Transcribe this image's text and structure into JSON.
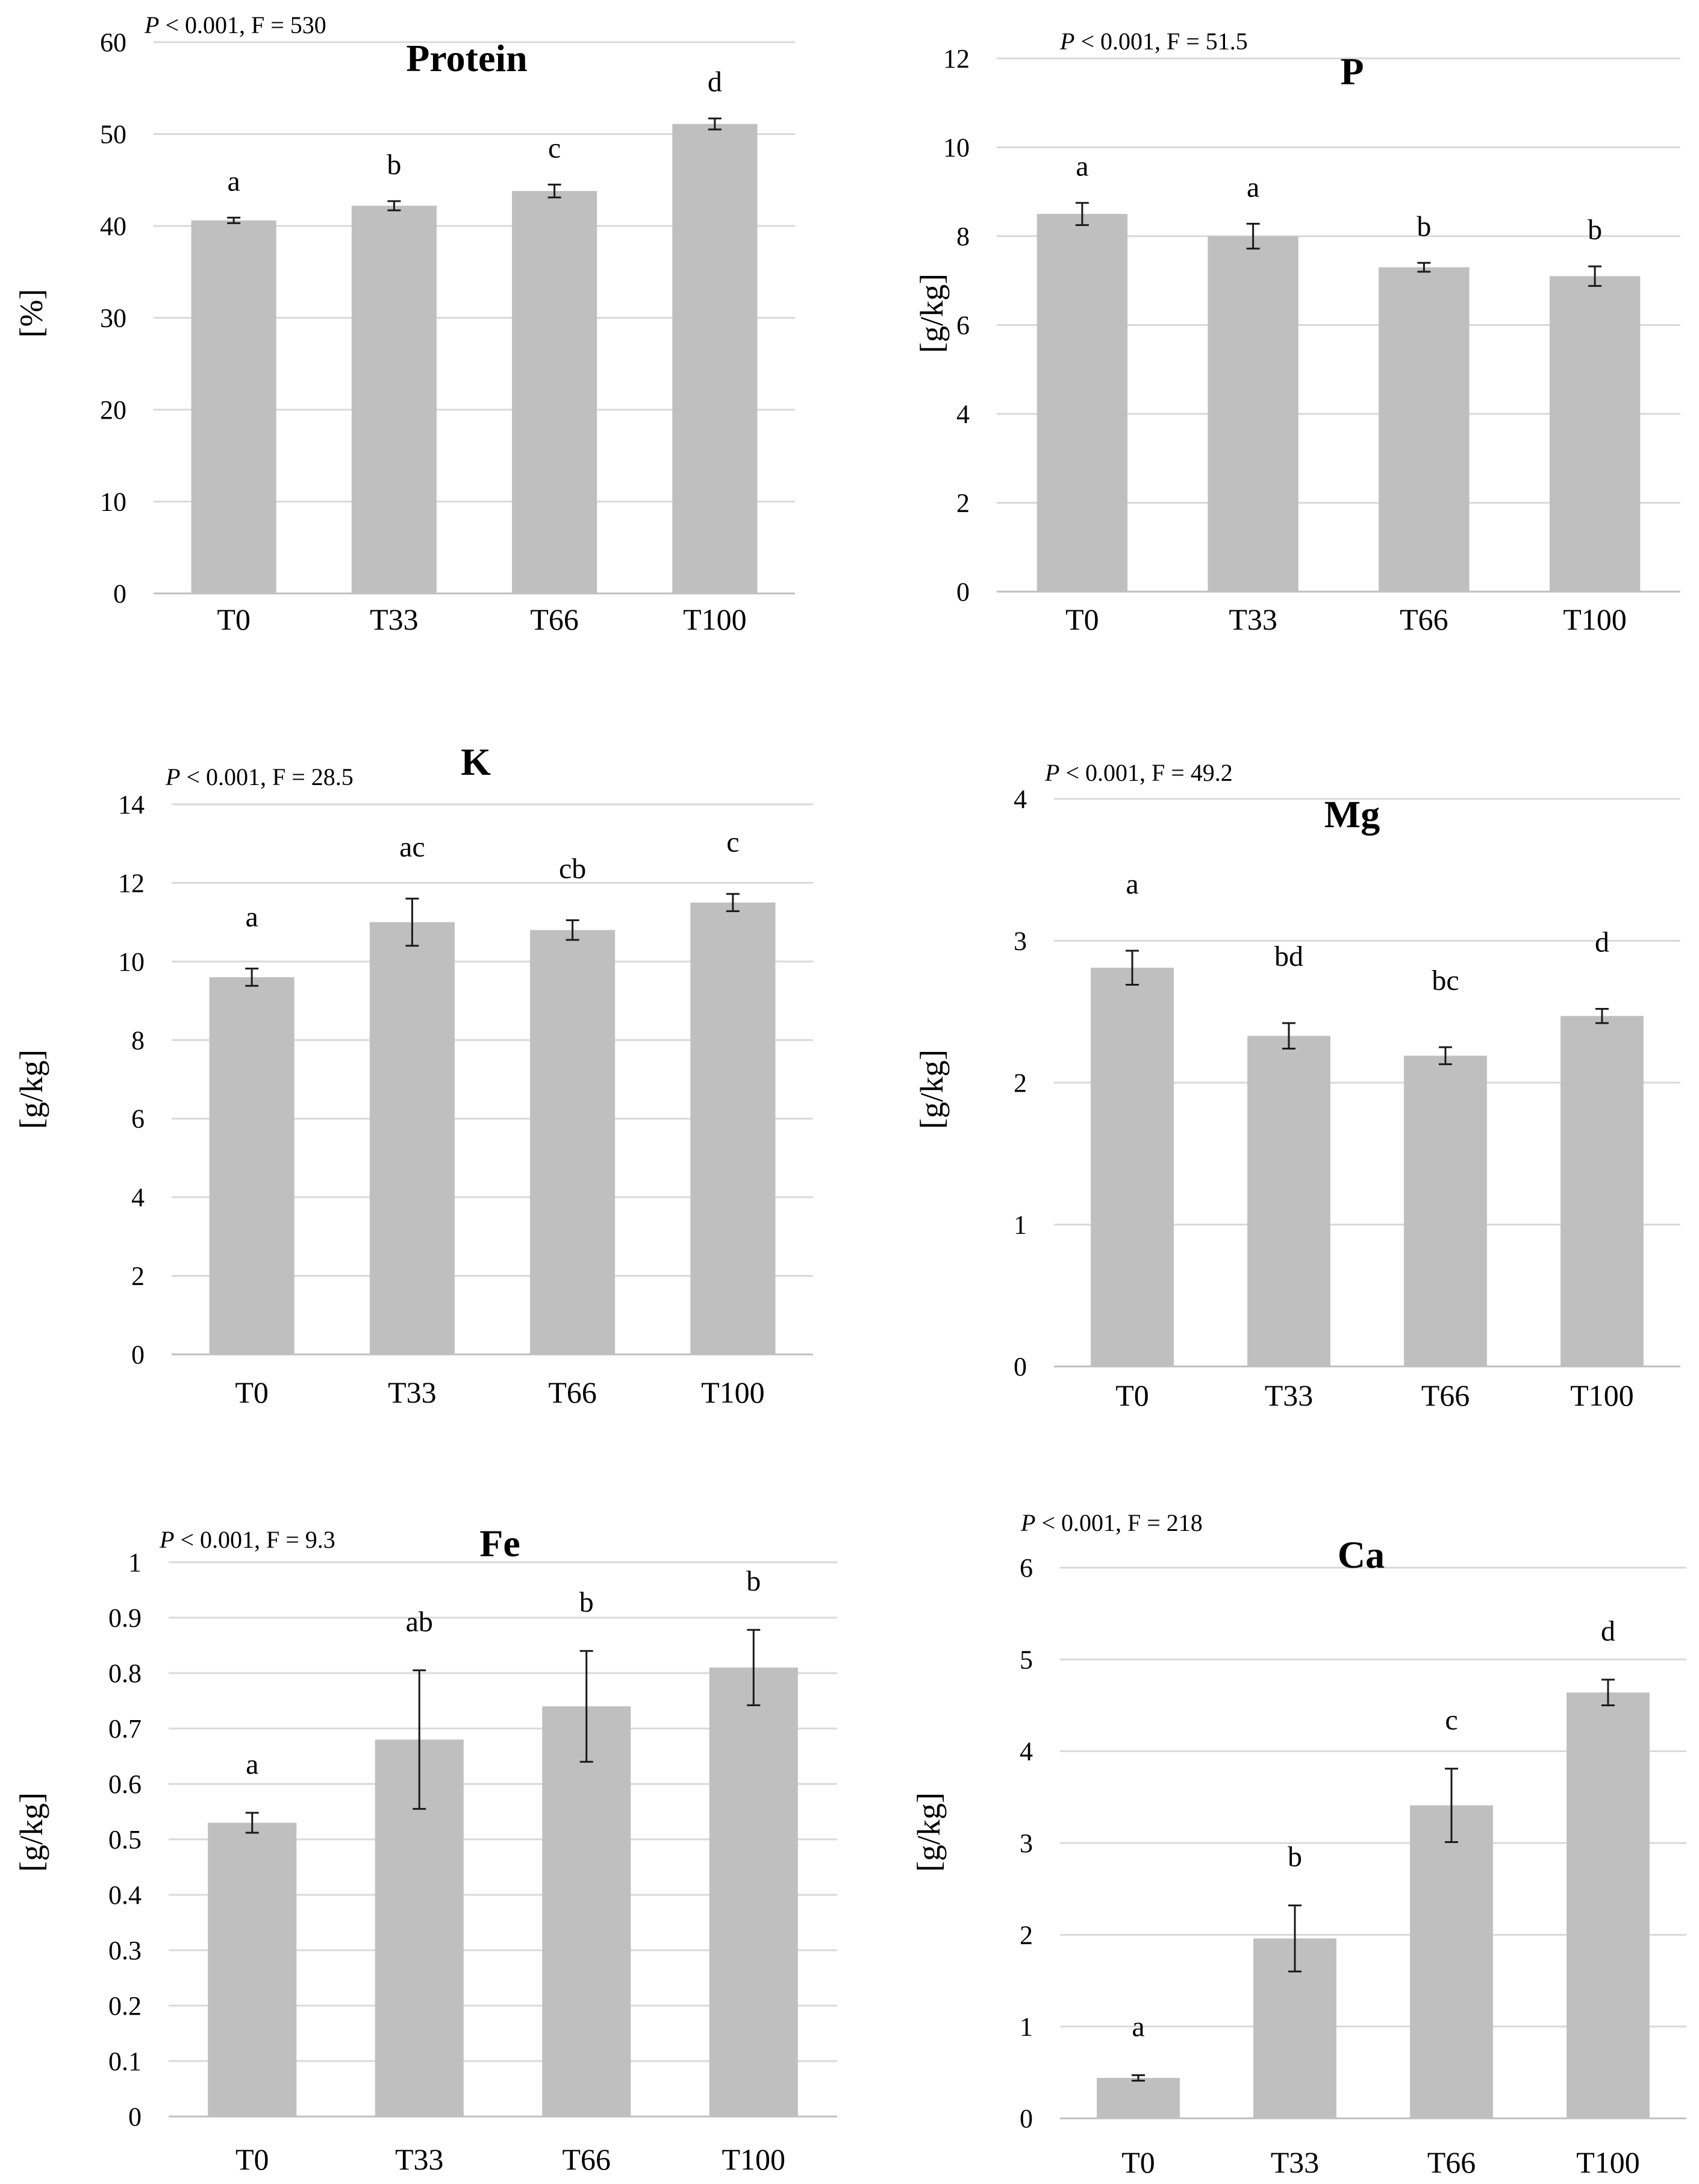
{
  "chart_data": [
    {
      "type": "bar",
      "title": "Protein",
      "stat_p": "P",
      "stat_rest": " < 0.001, F = 530",
      "ylabel": "[%]",
      "xlabel": "",
      "ylim": [
        0,
        60
      ],
      "yticks": [
        0,
        10,
        20,
        30,
        40,
        50,
        60
      ],
      "ytick_labels": [
        "0",
        "10",
        "20",
        "30",
        "40",
        "50",
        "60"
      ],
      "categories": [
        "T0",
        "T33",
        "T66",
        "T100"
      ],
      "values": [
        40.6,
        42.2,
        43.8,
        51.1
      ],
      "errors": [
        0.3,
        0.5,
        0.7,
        0.6
      ],
      "letters": [
        "a",
        "b",
        "c",
        "d"
      ],
      "grid": true
    },
    {
      "type": "bar",
      "title": "P",
      "stat_p": "P",
      "stat_rest": " < 0.001, F = 51.5",
      "ylabel": "[g/kg]",
      "xlabel": "",
      "ylim": [
        0,
        12
      ],
      "yticks": [
        0,
        2,
        4,
        6,
        8,
        10,
        12
      ],
      "ytick_labels": [
        "0",
        "2",
        "4",
        "6",
        "8",
        "10",
        "12"
      ],
      "categories": [
        "T0",
        "T33",
        "T66",
        "T100"
      ],
      "values": [
        8.5,
        8.0,
        7.3,
        7.1
      ],
      "errors": [
        0.25,
        0.28,
        0.1,
        0.22
      ],
      "letters": [
        "a",
        "a",
        "b",
        "b"
      ],
      "grid": true
    },
    {
      "type": "bar",
      "title": "K",
      "stat_p": "P",
      "stat_rest": " < 0.001, F = 28.5",
      "ylabel": "[g/kg]",
      "xlabel": "",
      "ylim": [
        0,
        14
      ],
      "yticks": [
        0,
        2,
        4,
        6,
        8,
        10,
        12,
        14
      ],
      "ytick_labels": [
        "0",
        "2",
        "4",
        "6",
        "8",
        "10",
        "12",
        "14"
      ],
      "categories": [
        "T0",
        "T33",
        "T66",
        "T100"
      ],
      "values": [
        9.6,
        11.0,
        10.8,
        11.5
      ],
      "errors": [
        0.22,
        0.6,
        0.25,
        0.22
      ],
      "letters": [
        "a",
        "ac",
        "cb",
        "c"
      ],
      "grid": true
    },
    {
      "type": "bar",
      "title": "Mg",
      "stat_p": "P",
      "stat_rest": " < 0.001, F = 49.2",
      "ylabel": "[g/kg]",
      "xlabel": "",
      "ylim": [
        0,
        4
      ],
      "yticks": [
        0,
        1,
        2,
        3,
        4
      ],
      "ytick_labels": [
        "0",
        "1",
        "2",
        "3",
        "4"
      ],
      "categories": [
        "T0",
        "T33",
        "T66",
        "T100"
      ],
      "values": [
        2.81,
        2.33,
        2.19,
        2.47
      ],
      "errors": [
        0.12,
        0.09,
        0.06,
        0.05
      ],
      "letters": [
        "a",
        "bd",
        "bc",
        "d"
      ],
      "grid": true
    },
    {
      "type": "bar",
      "title": "Fe",
      "stat_p": "P",
      "stat_rest": " < 0.001, F = 9.3",
      "ylabel": "[g/kg]",
      "xlabel": "",
      "ylim": [
        0,
        1
      ],
      "yticks": [
        0,
        0.1,
        0.2,
        0.3,
        0.4,
        0.5,
        0.6,
        0.7,
        0.8,
        0.9,
        1
      ],
      "ytick_labels": [
        "0",
        "0.1",
        "0.2",
        "0.3",
        "0.4",
        "0.5",
        "0.6",
        "0.7",
        "0.8",
        "0.9",
        "1"
      ],
      "categories": [
        "T0",
        "T33",
        "T66",
        "T100"
      ],
      "values": [
        0.53,
        0.68,
        0.74,
        0.81
      ],
      "errors": [
        0.018,
        0.125,
        0.1,
        0.068
      ],
      "letters": [
        "a",
        "ab",
        "b",
        "b"
      ],
      "grid": true
    },
    {
      "type": "bar",
      "title": "Ca",
      "stat_p": "P",
      "stat_rest": " < 0.001, F = 218",
      "ylabel": "[g/kg]",
      "xlabel": "",
      "ylim": [
        0,
        6
      ],
      "yticks": [
        0,
        1,
        2,
        3,
        4,
        5,
        6
      ],
      "ytick_labels": [
        "0",
        "1",
        "2",
        "3",
        "4",
        "5",
        "6"
      ],
      "categories": [
        "T0",
        "T33",
        "T66",
        "T100"
      ],
      "values": [
        0.44,
        1.96,
        3.41,
        4.64
      ],
      "errors": [
        0.03,
        0.36,
        0.4,
        0.14
      ],
      "letters": [
        "a",
        "b",
        "c",
        "d"
      ],
      "grid": true
    }
  ]
}
